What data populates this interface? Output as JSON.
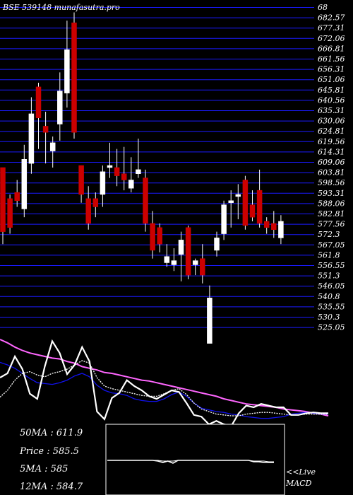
{
  "chart_data": [
    {
      "type": "candlestick",
      "title": "BSE 539148 munafasutra.pro",
      "y_tick_labels": [
        "68",
        "682.57",
        "677.31",
        "672.06",
        "666.81",
        "661.56",
        "656.31",
        "651.06",
        "645.81",
        "640.56",
        "635.31",
        "630.06",
        "624.81",
        "619.56",
        "614.31",
        "609.06",
        "603.81",
        "598.56",
        "593.31",
        "588.06",
        "582.81",
        "577.56",
        "572.3",
        "567.05",
        "561.8",
        "556.55",
        "551.3",
        "546.05",
        "540.8",
        "535.55",
        "530.3",
        "525.05"
      ],
      "ylim": [
        522.5,
        690
      ],
      "grid": true,
      "candles": [
        {
          "o": 609,
          "h": 609,
          "l": 572,
          "c": 578,
          "color": "red"
        },
        {
          "o": 580,
          "h": 596,
          "l": 577,
          "c": 594,
          "color": "red"
        },
        {
          "o": 597,
          "h": 603,
          "l": 590,
          "c": 593,
          "color": "red"
        },
        {
          "o": 589,
          "h": 620,
          "l": 585,
          "c": 613,
          "color": "white"
        },
        {
          "o": 611,
          "h": 643,
          "l": 606,
          "c": 635,
          "color": "white"
        },
        {
          "o": 648,
          "h": 650,
          "l": 618,
          "c": 633,
          "color": "red"
        },
        {
          "o": 629,
          "h": 636,
          "l": 611,
          "c": 626,
          "color": "red"
        },
        {
          "o": 621,
          "h": 624,
          "l": 609,
          "c": 617,
          "color": "white"
        },
        {
          "o": 630,
          "h": 655,
          "l": 622,
          "c": 646,
          "color": "white"
        },
        {
          "o": 645,
          "h": 680,
          "l": 638,
          "c": 666,
          "color": "white"
        },
        {
          "o": 679,
          "h": 684,
          "l": 623,
          "c": 626,
          "color": "red"
        },
        {
          "o": 610,
          "h": 610,
          "l": 592,
          "c": 596,
          "color": "red"
        },
        {
          "o": 594,
          "h": 600,
          "l": 579,
          "c": 582,
          "color": "red"
        },
        {
          "o": 594,
          "h": 597,
          "l": 585,
          "c": 590,
          "color": "red"
        },
        {
          "o": 596,
          "h": 610,
          "l": 590,
          "c": 607,
          "color": "white"
        },
        {
          "o": 609,
          "h": 621,
          "l": 604,
          "c": 610,
          "color": "white"
        },
        {
          "o": 609,
          "h": 618,
          "l": 600,
          "c": 605,
          "color": "red"
        },
        {
          "o": 606,
          "h": 619,
          "l": 598,
          "c": 603,
          "color": "red"
        },
        {
          "o": 599,
          "h": 614,
          "l": 597,
          "c": 603,
          "color": "white"
        },
        {
          "o": 608,
          "h": 623,
          "l": 604,
          "c": 606,
          "color": "white"
        },
        {
          "o": 604,
          "h": 608,
          "l": 578,
          "c": 582,
          "color": "red"
        },
        {
          "o": 582,
          "h": 588,
          "l": 565,
          "c": 569,
          "color": "red"
        },
        {
          "o": 580,
          "h": 582,
          "l": 568,
          "c": 572,
          "color": "red"
        },
        {
          "o": 566,
          "h": 572,
          "l": 561,
          "c": 563,
          "color": "white"
        },
        {
          "o": 562,
          "h": 570,
          "l": 559,
          "c": 564,
          "color": "white"
        },
        {
          "o": 567,
          "h": 578,
          "l": 554,
          "c": 574,
          "color": "white"
        },
        {
          "o": 580,
          "h": 581,
          "l": 555,
          "c": 557,
          "color": "red"
        },
        {
          "o": 562,
          "h": 565,
          "l": 557,
          "c": 564,
          "color": "white"
        },
        {
          "o": 565,
          "h": 572,
          "l": 553,
          "c": 557,
          "color": "red"
        },
        {
          "o": 524,
          "h": 552,
          "l": 524,
          "c": 546,
          "color": "white"
        },
        {
          "o": 569,
          "h": 578,
          "l": 566,
          "c": 575,
          "color": "white"
        },
        {
          "o": 577,
          "h": 593,
          "l": 574,
          "c": 591,
          "color": "white"
        },
        {
          "o": 592,
          "h": 598,
          "l": 580,
          "c": 593,
          "color": "white"
        },
        {
          "o": 595,
          "h": 601,
          "l": 584,
          "c": 596,
          "color": "white"
        },
        {
          "o": 603,
          "h": 605,
          "l": 579,
          "c": 581,
          "color": "red"
        },
        {
          "o": 591,
          "h": 598,
          "l": 583,
          "c": 585,
          "color": "red"
        },
        {
          "o": 598,
          "h": 608,
          "l": 580,
          "c": 582,
          "color": "red"
        },
        {
          "o": 583,
          "h": 585,
          "l": 577,
          "c": 580,
          "color": "red"
        },
        {
          "o": 579,
          "h": 588,
          "l": 575,
          "c": 582,
          "color": "red"
        },
        {
          "o": 583,
          "h": 586,
          "l": 572,
          "c": 575,
          "color": "white"
        }
      ]
    },
    {
      "type": "line",
      "series": [
        {
          "color": "#ff66ff",
          "values": [
            100,
            96,
            91,
            87,
            84,
            82,
            80,
            78,
            77,
            74,
            72,
            68,
            66,
            64,
            61,
            60,
            58,
            56,
            54,
            52,
            51,
            49,
            47,
            45,
            43,
            41,
            39,
            37,
            35,
            33,
            30,
            28,
            26,
            24,
            23,
            22,
            21,
            20,
            18,
            17,
            16,
            15,
            13,
            12,
            10
          ]
        },
        {
          "color": "#1111ee",
          "values": [
            73,
            70,
            66,
            60,
            54,
            49,
            48,
            47,
            49,
            52,
            57,
            60,
            56,
            46,
            40,
            37,
            36,
            34,
            30,
            28,
            27,
            27,
            30,
            35,
            38,
            33,
            25,
            19,
            17,
            15,
            14,
            12,
            11,
            9,
            8,
            7,
            7,
            8,
            9,
            12,
            13,
            14,
            13,
            12,
            12
          ]
        },
        {
          "color": "#ffffff",
          "values": [
            55,
            60,
            80,
            65,
            36,
            30,
            68,
            98,
            84,
            59,
            70,
            91,
            74,
            15,
            6,
            31,
            37,
            52,
            45,
            40,
            33,
            30,
            35,
            40,
            38,
            25,
            11,
            9,
            0,
            4,
            0,
            -2,
            13,
            22,
            20,
            24,
            22,
            20,
            20,
            11,
            11,
            13,
            14,
            13,
            13
          ]
        },
        {
          "color": "#ffffff",
          "values": [
            32,
            40,
            52,
            60,
            62,
            58,
            56,
            60,
            62,
            65,
            70,
            75,
            72,
            55,
            45,
            42,
            40,
            38,
            36,
            34,
            33,
            33,
            36,
            40,
            42,
            35,
            25,
            18,
            15,
            12,
            11,
            10,
            10,
            12,
            13,
            14,
            14,
            13,
            12,
            11,
            11,
            12,
            12,
            12,
            12
          ]
        }
      ]
    },
    {
      "type": "line",
      "series": [
        {
          "color": "#ffffff",
          "values": [
            0,
            0,
            0,
            0,
            0,
            0,
            0,
            0,
            0,
            0,
            -1,
            -3,
            -1,
            -4,
            0,
            0,
            0,
            0,
            0,
            0,
            0,
            0,
            0,
            0,
            0,
            0,
            0,
            0,
            0,
            -2,
            -2,
            -3,
            -3,
            -3
          ]
        },
        {
          "color": "#ffffff",
          "values": [
            0,
            0,
            0,
            0,
            0,
            0,
            0,
            0,
            0,
            0,
            0,
            -1,
            -1,
            -1,
            0,
            0,
            0,
            0,
            0,
            0,
            0,
            0,
            0,
            0,
            0,
            0,
            0,
            0,
            0,
            -1,
            -1,
            -1,
            -2,
            -2
          ]
        }
      ]
    }
  ],
  "colors": {
    "up": "#ffffff",
    "down": "#cc0000",
    "grid": "#1a1aff",
    "ma50": "#ff66ff",
    "ma_blue": "#1111ee"
  },
  "info": {
    "ma50": "50MA : 611.9",
    "price": "Price  : 585.5",
    "ma5": "5MA : 585",
    "ma12": "12MA : 584.7"
  },
  "macd": {
    "live": "<<Live",
    "label": "MACD"
  }
}
